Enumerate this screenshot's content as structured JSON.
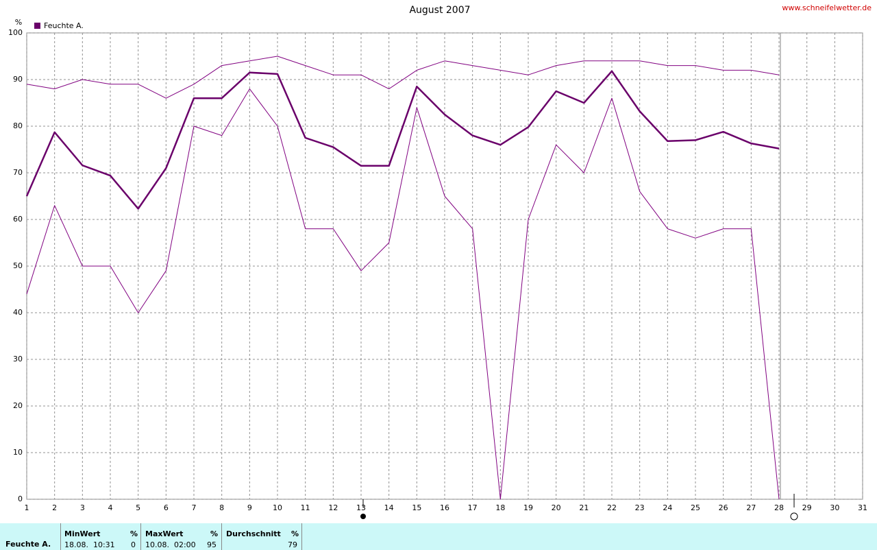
{
  "chart_data": {
    "type": "line",
    "title": "August 2007",
    "source": "www.schneifelwetter.de",
    "y_label": "%",
    "x": [
      1,
      2,
      3,
      4,
      5,
      6,
      7,
      8,
      9,
      10,
      11,
      12,
      13,
      14,
      15,
      16,
      17,
      18,
      19,
      20,
      21,
      22,
      23,
      24,
      25,
      26,
      27,
      28
    ],
    "xlim": [
      1,
      31
    ],
    "xticks": [
      1,
      2,
      3,
      4,
      5,
      6,
      7,
      8,
      9,
      10,
      11,
      12,
      13,
      14,
      15,
      16,
      17,
      18,
      19,
      20,
      21,
      22,
      23,
      24,
      25,
      26,
      27,
      28,
      29,
      30,
      31
    ],
    "ylim": [
      0,
      100
    ],
    "yticks": [
      0,
      10,
      20,
      30,
      40,
      50,
      60,
      70,
      80,
      90,
      100
    ],
    "grid": true,
    "legend": "top-left",
    "series": [
      {
        "color": "#800080",
        "values": [
          89,
          88,
          90,
          89,
          89,
          86,
          89,
          93,
          94,
          95,
          93,
          91,
          91,
          88,
          92,
          94,
          93,
          92,
          91,
          93,
          94,
          94,
          94,
          93,
          93,
          92,
          92,
          91
        ]
      },
      {
        "name": "Feuchte A.",
        "color": "#6a006a",
        "values": [
          65,
          78.7,
          71.6,
          69.4,
          62.3,
          71,
          86,
          86,
          91.5,
          91.2,
          77.5,
          75.5,
          71.5,
          71.5,
          88.5,
          82.5,
          78,
          76,
          79.8,
          87.5,
          85,
          91.8,
          83.2,
          76.8,
          77,
          78.8,
          76.3,
          75.2
        ]
      },
      {
        "color": "#800080",
        "values": [
          44,
          63,
          50,
          50,
          40,
          49,
          80,
          78,
          88,
          80,
          58,
          58,
          49,
          55,
          84,
          65,
          58,
          0,
          60,
          76,
          70,
          86,
          66,
          58,
          56,
          58,
          58,
          0
        ]
      }
    ]
  },
  "summary": {
    "row_label": "Feuchte A.",
    "columns": [
      {
        "header": "MinWert",
        "unit": "%",
        "time": "18.08.  10:31",
        "value": 0
      },
      {
        "header": "MaxWert",
        "unit": "%",
        "time": "10.08.  02:00",
        "value": 95
      },
      {
        "header": "Durchschnitt",
        "unit": "%",
        "value": 79
      }
    ]
  }
}
